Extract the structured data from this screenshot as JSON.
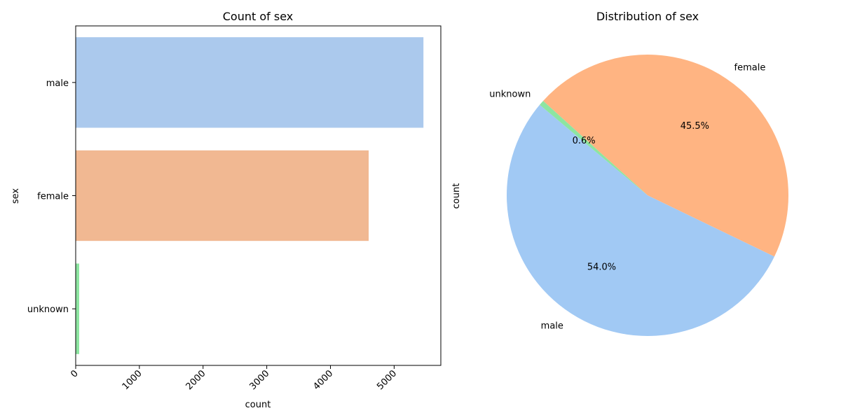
{
  "chart_data": [
    {
      "type": "bar",
      "orientation": "horizontal",
      "title": "Count of sex",
      "xlabel": "count",
      "ylabel": "sex",
      "categories": [
        "male",
        "female",
        "unknown"
      ],
      "values": [
        5460,
        4600,
        55
      ],
      "xlim": [
        0,
        5733
      ],
      "xticks": [
        0,
        1000,
        2000,
        3000,
        4000,
        5000
      ],
      "xtick_rotation": 45,
      "colors": [
        "#abc9ed",
        "#f1b892",
        "#8de5a1"
      ],
      "grid": false
    },
    {
      "type": "pie",
      "title": "Distribution of sex",
      "ylabel": "count",
      "labels": [
        "male",
        "female",
        "unknown"
      ],
      "values": [
        54.0,
        45.5,
        0.6
      ],
      "pct_labels": [
        "54.0%",
        "45.5%",
        "0.6%"
      ],
      "colors": [
        "#a1c9f4",
        "#ffb482",
        "#8de5a1"
      ],
      "start_angle_deg": 140
    }
  ]
}
